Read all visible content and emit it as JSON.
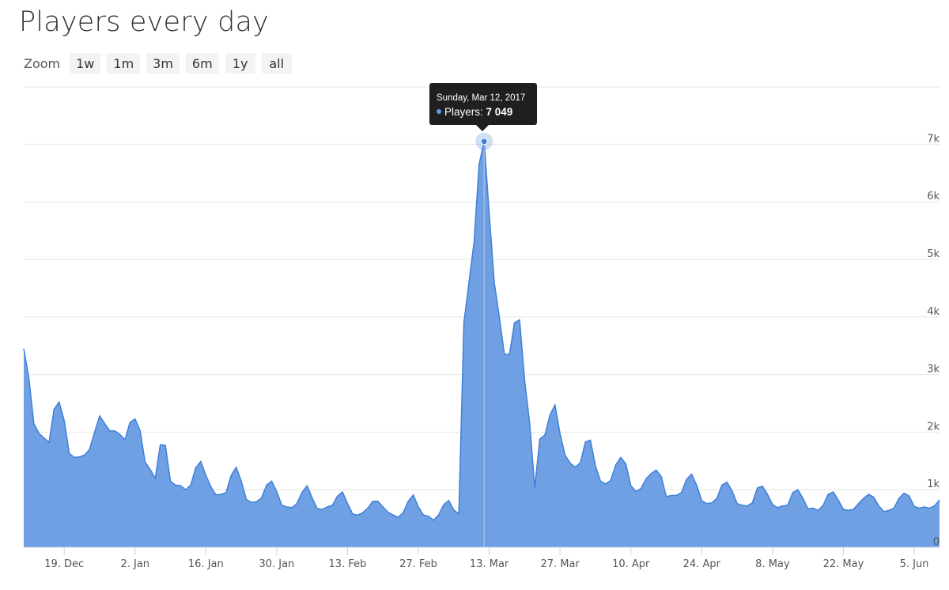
{
  "title": "Players every day",
  "zoom": {
    "label": "Zoom",
    "buttons": [
      "1w",
      "1m",
      "3m",
      "6m",
      "1y",
      "all"
    ]
  },
  "tooltip": {
    "date": "Sunday, Mar 12, 2017",
    "series_label": "Players: ",
    "value": "7 049"
  },
  "colors": {
    "area_fill": "#6fa0e3",
    "area_line": "#3f7fd9",
    "grid": "#e6e6e6",
    "tooltip_bg": "#1f1f1f"
  },
  "chart_data": {
    "type": "area",
    "title": "Players every day",
    "x_start": "2016-12-11",
    "x_end": "2017-06-10",
    "x_tick_labels": [
      "19. Dec",
      "2. Jan",
      "16. Jan",
      "30. Jan",
      "13. Feb",
      "27. Feb",
      "13. Mar",
      "27. Mar",
      "10. Apr",
      "24. Apr",
      "8. May",
      "22. May",
      "5. Jun"
    ],
    "x_tick_dates": [
      "2016-12-19",
      "2017-01-02",
      "2017-01-16",
      "2017-01-30",
      "2017-02-13",
      "2017-02-27",
      "2017-03-13",
      "2017-03-27",
      "2017-04-10",
      "2017-04-24",
      "2017-05-08",
      "2017-05-22",
      "2017-06-05"
    ],
    "y_tick_labels": [
      "0",
      "1k",
      "2k",
      "3k",
      "4k",
      "5k",
      "6k",
      "7k"
    ],
    "ylim": [
      0,
      8000
    ],
    "grid": true,
    "legend": "none",
    "series": [
      {
        "name": "Players",
        "points": [
          [
            "2016-12-11",
            3450
          ],
          [
            "2016-12-12",
            2950
          ],
          [
            "2016-12-13",
            2150
          ],
          [
            "2016-12-14",
            1980
          ],
          [
            "2016-12-15",
            1900
          ],
          [
            "2016-12-16",
            1820
          ],
          [
            "2016-12-17",
            2400
          ],
          [
            "2016-12-18",
            2520
          ],
          [
            "2016-12-19",
            2200
          ],
          [
            "2016-12-20",
            1630
          ],
          [
            "2016-12-21",
            1560
          ],
          [
            "2016-12-22",
            1570
          ],
          [
            "2016-12-23",
            1600
          ],
          [
            "2016-12-24",
            1700
          ],
          [
            "2016-12-25",
            2000
          ],
          [
            "2016-12-26",
            2280
          ],
          [
            "2016-12-27",
            2150
          ],
          [
            "2016-12-28",
            2020
          ],
          [
            "2016-12-29",
            2020
          ],
          [
            "2016-12-30",
            1960
          ],
          [
            "2016-12-31",
            1870
          ],
          [
            "2017-01-01",
            2170
          ],
          [
            "2017-01-02",
            2230
          ],
          [
            "2017-01-03",
            2030
          ],
          [
            "2017-01-04",
            1480
          ],
          [
            "2017-01-05",
            1350
          ],
          [
            "2017-01-06",
            1200
          ],
          [
            "2017-01-07",
            1780
          ],
          [
            "2017-01-08",
            1770
          ],
          [
            "2017-01-09",
            1150
          ],
          [
            "2017-01-10",
            1080
          ],
          [
            "2017-01-11",
            1070
          ],
          [
            "2017-01-12",
            1000
          ],
          [
            "2017-01-13",
            1080
          ],
          [
            "2017-01-14",
            1380
          ],
          [
            "2017-01-15",
            1490
          ],
          [
            "2017-01-16",
            1250
          ],
          [
            "2017-01-17",
            1050
          ],
          [
            "2017-01-18",
            910
          ],
          [
            "2017-01-19",
            920
          ],
          [
            "2017-01-20",
            950
          ],
          [
            "2017-01-21",
            1250
          ],
          [
            "2017-01-22",
            1390
          ],
          [
            "2017-01-23",
            1150
          ],
          [
            "2017-01-24",
            830
          ],
          [
            "2017-01-25",
            780
          ],
          [
            "2017-01-26",
            790
          ],
          [
            "2017-01-27",
            860
          ],
          [
            "2017-01-28",
            1080
          ],
          [
            "2017-01-29",
            1150
          ],
          [
            "2017-01-30",
            970
          ],
          [
            "2017-01-31",
            730
          ],
          [
            "2017-02-01",
            700
          ],
          [
            "2017-02-02",
            690
          ],
          [
            "2017-02-03",
            760
          ],
          [
            "2017-02-04",
            950
          ],
          [
            "2017-02-05",
            1070
          ],
          [
            "2017-02-06",
            860
          ],
          [
            "2017-02-07",
            670
          ],
          [
            "2017-02-08",
            660
          ],
          [
            "2017-02-09",
            700
          ],
          [
            "2017-02-10",
            730
          ],
          [
            "2017-02-11",
            890
          ],
          [
            "2017-02-12",
            960
          ],
          [
            "2017-02-13",
            760
          ],
          [
            "2017-02-14",
            580
          ],
          [
            "2017-02-15",
            560
          ],
          [
            "2017-02-16",
            600
          ],
          [
            "2017-02-17",
            680
          ],
          [
            "2017-02-18",
            800
          ],
          [
            "2017-02-19",
            800
          ],
          [
            "2017-02-20",
            700
          ],
          [
            "2017-02-21",
            610
          ],
          [
            "2017-02-22",
            560
          ],
          [
            "2017-02-23",
            520
          ],
          [
            "2017-02-24",
            600
          ],
          [
            "2017-02-25",
            800
          ],
          [
            "2017-02-26",
            910
          ],
          [
            "2017-02-27",
            700
          ],
          [
            "2017-02-28",
            560
          ],
          [
            "2017-03-01",
            540
          ],
          [
            "2017-03-02",
            470
          ],
          [
            "2017-03-03",
            560
          ],
          [
            "2017-03-04",
            740
          ],
          [
            "2017-03-05",
            810
          ],
          [
            "2017-03-06",
            650
          ],
          [
            "2017-03-07",
            580
          ],
          [
            "2017-03-08",
            3900
          ],
          [
            "2017-03-09",
            4600
          ],
          [
            "2017-03-10",
            5300
          ],
          [
            "2017-03-11",
            6650
          ],
          [
            "2017-03-12",
            7049
          ],
          [
            "2017-03-13",
            5800
          ],
          [
            "2017-03-14",
            4600
          ],
          [
            "2017-03-15",
            4000
          ],
          [
            "2017-03-16",
            3350
          ],
          [
            "2017-03-17",
            3350
          ],
          [
            "2017-03-18",
            3900
          ],
          [
            "2017-03-19",
            3950
          ],
          [
            "2017-03-20",
            2900
          ],
          [
            "2017-03-21",
            2150
          ],
          [
            "2017-03-22",
            1040
          ],
          [
            "2017-03-23",
            1880
          ],
          [
            "2017-03-24",
            1950
          ],
          [
            "2017-03-25",
            2300
          ],
          [
            "2017-03-26",
            2470
          ],
          [
            "2017-03-27",
            1970
          ],
          [
            "2017-03-28",
            1600
          ],
          [
            "2017-03-29",
            1460
          ],
          [
            "2017-03-30",
            1390
          ],
          [
            "2017-03-31",
            1470
          ],
          [
            "2017-04-01",
            1830
          ],
          [
            "2017-04-02",
            1860
          ],
          [
            "2017-04-03",
            1410
          ],
          [
            "2017-04-04",
            1150
          ],
          [
            "2017-04-05",
            1100
          ],
          [
            "2017-04-06",
            1160
          ],
          [
            "2017-04-07",
            1430
          ],
          [
            "2017-04-08",
            1560
          ],
          [
            "2017-04-09",
            1450
          ],
          [
            "2017-04-10",
            1070
          ],
          [
            "2017-04-11",
            970
          ],
          [
            "2017-04-12",
            1020
          ],
          [
            "2017-04-13",
            1190
          ],
          [
            "2017-04-14",
            1280
          ],
          [
            "2017-04-15",
            1340
          ],
          [
            "2017-04-16",
            1230
          ],
          [
            "2017-04-17",
            880
          ],
          [
            "2017-04-18",
            900
          ],
          [
            "2017-04-19",
            900
          ],
          [
            "2017-04-20",
            950
          ],
          [
            "2017-04-21",
            1180
          ],
          [
            "2017-04-22",
            1270
          ],
          [
            "2017-04-23",
            1080
          ],
          [
            "2017-04-24",
            810
          ],
          [
            "2017-04-25",
            760
          ],
          [
            "2017-04-26",
            770
          ],
          [
            "2017-04-27",
            850
          ],
          [
            "2017-04-28",
            1080
          ],
          [
            "2017-04-29",
            1130
          ],
          [
            "2017-04-30",
            980
          ],
          [
            "2017-05-01",
            760
          ],
          [
            "2017-05-02",
            730
          ],
          [
            "2017-05-03",
            720
          ],
          [
            "2017-05-04",
            770
          ],
          [
            "2017-05-05",
            1030
          ],
          [
            "2017-05-06",
            1060
          ],
          [
            "2017-05-07",
            920
          ],
          [
            "2017-05-08",
            740
          ],
          [
            "2017-05-09",
            690
          ],
          [
            "2017-05-10",
            720
          ],
          [
            "2017-05-11",
            730
          ],
          [
            "2017-05-12",
            950
          ],
          [
            "2017-05-13",
            1000
          ],
          [
            "2017-05-14",
            850
          ],
          [
            "2017-05-15",
            670
          ],
          [
            "2017-05-16",
            680
          ],
          [
            "2017-05-17",
            640
          ],
          [
            "2017-05-18",
            730
          ],
          [
            "2017-05-19",
            920
          ],
          [
            "2017-05-20",
            960
          ],
          [
            "2017-05-21",
            820
          ],
          [
            "2017-05-22",
            660
          ],
          [
            "2017-05-23",
            640
          ],
          [
            "2017-05-24",
            660
          ],
          [
            "2017-05-25",
            760
          ],
          [
            "2017-05-26",
            850
          ],
          [
            "2017-05-27",
            920
          ],
          [
            "2017-05-28",
            870
          ],
          [
            "2017-05-29",
            720
          ],
          [
            "2017-05-30",
            620
          ],
          [
            "2017-05-31",
            640
          ],
          [
            "2017-06-01",
            680
          ],
          [
            "2017-06-02",
            850
          ],
          [
            "2017-06-03",
            940
          ],
          [
            "2017-06-04",
            890
          ],
          [
            "2017-06-05",
            710
          ],
          [
            "2017-06-06",
            680
          ],
          [
            "2017-06-07",
            700
          ],
          [
            "2017-06-08",
            680
          ],
          [
            "2017-06-09",
            720
          ],
          [
            "2017-06-10",
            820
          ]
        ]
      }
    ]
  }
}
